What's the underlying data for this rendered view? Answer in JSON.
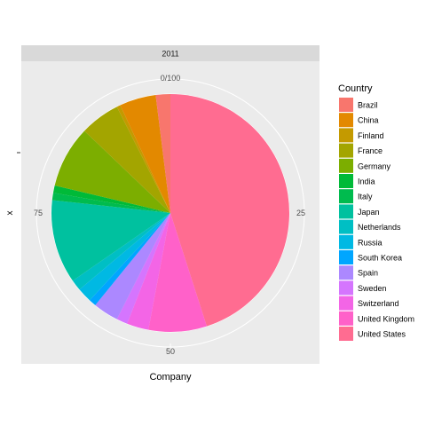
{
  "chart_data": {
    "type": "pie",
    "facet_label": "2011",
    "xlabel": "Company",
    "ylabel": "x",
    "theta_ticks": [
      {
        "value": 0,
        "label": "0/100"
      },
      {
        "value": 25,
        "label": "25"
      },
      {
        "value": 50,
        "label": "50"
      },
      {
        "value": 75,
        "label": "75"
      }
    ],
    "legend_title": "Country",
    "slices": [
      {
        "label": "United States",
        "value": 45.5,
        "color": "#FF6C91"
      },
      {
        "label": "United Kingdom",
        "value": 8.0,
        "color": "#FF61C9"
      },
      {
        "label": "Switzerland",
        "value": 3.0,
        "color": "#F365E6"
      },
      {
        "label": "Sweden",
        "value": 1.5,
        "color": "#D575FE"
      },
      {
        "label": "Spain",
        "value": 3.5,
        "color": "#AC88FF"
      },
      {
        "label": "South Korea",
        "value": 1.0,
        "color": "#00A6FF"
      },
      {
        "label": "Russia",
        "value": 2.0,
        "color": "#00B9E3"
      },
      {
        "label": "Netherlands",
        "value": 1.5,
        "color": "#00BFC4"
      },
      {
        "label": "Japan",
        "value": 11.5,
        "color": "#00C19F"
      },
      {
        "label": "Italy",
        "value": 1.0,
        "color": "#00BB4E"
      },
      {
        "label": "India",
        "value": 1.0,
        "color": "#00BA38"
      },
      {
        "label": "Germany",
        "value": 8.5,
        "color": "#7CAE00"
      },
      {
        "label": "France",
        "value": 5.5,
        "color": "#A3A500"
      },
      {
        "label": "Finland",
        "value": 0.5,
        "color": "#C49A00"
      },
      {
        "label": "China",
        "value": 5.0,
        "color": "#E38900"
      },
      {
        "label": "Brazil",
        "value": 2.0,
        "color": "#F8766D"
      }
    ],
    "legend_order": [
      "Brazil",
      "China",
      "Finland",
      "France",
      "Germany",
      "India",
      "Italy",
      "Japan",
      "Netherlands",
      "Russia",
      "South Korea",
      "Spain",
      "Sweden",
      "Switzerland",
      "United Kingdom",
      "United States"
    ]
  }
}
